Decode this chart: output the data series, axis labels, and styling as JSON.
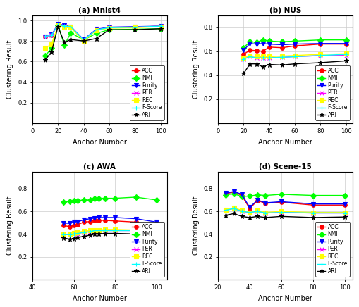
{
  "subplot_a": {
    "title": "(a) Mnist4",
    "xlabel": "Anchor Number",
    "ylabel": "Clustering Result",
    "xlim": [
      0,
      105
    ],
    "ylim": [
      0,
      1.05
    ],
    "xticks": [
      0,
      20,
      40,
      60,
      80,
      100
    ],
    "yticks": [
      0.2,
      0.4,
      0.6,
      0.8,
      1.0
    ],
    "series": {
      "ACC": {
        "x": [
          10,
          15,
          20,
          25,
          30,
          40,
          50,
          60,
          80,
          100
        ],
        "y": [
          0.845,
          0.855,
          0.96,
          0.945,
          0.94,
          0.81,
          0.91,
          0.93,
          0.935,
          0.945
        ],
        "color": "#FF0000",
        "marker": "o"
      },
      "NMI": {
        "x": [
          10,
          15,
          20,
          25,
          30,
          40,
          50,
          60,
          80,
          100
        ],
        "y": [
          0.655,
          0.73,
          0.955,
          0.76,
          0.88,
          0.81,
          0.875,
          0.91,
          0.915,
          0.92
        ],
        "color": "#00FF00",
        "marker": "D"
      },
      "Purity": {
        "x": [
          10,
          15,
          20,
          25,
          30,
          40,
          50,
          60,
          80,
          100
        ],
        "y": [
          0.845,
          0.86,
          0.965,
          0.955,
          0.94,
          0.815,
          0.915,
          0.935,
          0.94,
          0.945
        ],
        "color": "#0000FF",
        "marker": "v"
      },
      "PER": {
        "x": [
          10,
          15,
          20,
          25,
          30,
          40,
          50,
          60,
          80,
          100
        ],
        "y": [
          0.845,
          0.855,
          0.96,
          0.945,
          0.94,
          0.81,
          0.91,
          0.93,
          0.935,
          0.945
        ],
        "color": "#FF00FF",
        "marker": "x"
      },
      "REC": {
        "x": [
          10,
          15,
          20,
          25,
          30,
          40,
          50,
          60,
          80,
          100
        ],
        "y": [
          0.73,
          0.77,
          0.95,
          0.93,
          0.93,
          0.8,
          0.905,
          0.925,
          0.93,
          0.94
        ],
        "color": "#FFFF00",
        "marker": "s"
      },
      "F-Score": {
        "x": [
          10,
          15,
          20,
          25,
          30,
          40,
          50,
          60,
          80,
          100
        ],
        "y": [
          0.845,
          0.855,
          0.96,
          0.945,
          0.94,
          0.81,
          0.91,
          0.93,
          0.935,
          0.945
        ],
        "color": "#00FFFF",
        "marker": "+"
      },
      "ARI": {
        "x": [
          10,
          15,
          20,
          25,
          30,
          40,
          50,
          60,
          80,
          100
        ],
        "y": [
          0.615,
          0.695,
          0.94,
          0.785,
          0.815,
          0.8,
          0.825,
          0.91,
          0.91,
          0.92
        ],
        "color": "#000000",
        "marker": "*"
      }
    }
  },
  "subplot_b": {
    "title": "(b) NUS",
    "xlabel": "Anchor Number",
    "ylabel": "Clustering Result",
    "xlim": [
      0,
      105
    ],
    "ylim": [
      0,
      0.9
    ],
    "xticks": [
      0,
      20,
      40,
      60,
      80,
      100
    ],
    "yticks": [
      0.2,
      0.4,
      0.6,
      0.8
    ],
    "series": {
      "ACC": {
        "x": [
          20,
          25,
          30,
          35,
          40,
          50,
          60,
          80,
          100
        ],
        "y": [
          0.575,
          0.61,
          0.605,
          0.6,
          0.635,
          0.63,
          0.645,
          0.66,
          0.66
        ],
        "color": "#FF0000",
        "marker": "o"
      },
      "NMI": {
        "x": [
          20,
          25,
          30,
          35,
          40,
          50,
          60,
          80,
          100
        ],
        "y": [
          0.63,
          0.68,
          0.675,
          0.695,
          0.685,
          0.68,
          0.685,
          0.695,
          0.695
        ],
        "color": "#00FF00",
        "marker": "D"
      },
      "Purity": {
        "x": [
          20,
          25,
          30,
          35,
          40,
          50,
          60,
          80,
          100
        ],
        "y": [
          0.61,
          0.665,
          0.66,
          0.665,
          0.66,
          0.655,
          0.66,
          0.665,
          0.665
        ],
        "color": "#0000FF",
        "marker": "v"
      },
      "PER": {
        "x": [
          20,
          25,
          30,
          35,
          40,
          50,
          60,
          80,
          100
        ],
        "y": [
          0.535,
          0.555,
          0.545,
          0.545,
          0.545,
          0.55,
          0.555,
          0.565,
          0.565
        ],
        "color": "#FF00FF",
        "marker": "x"
      },
      "REC": {
        "x": [
          20,
          25,
          30,
          35,
          40,
          50,
          60,
          80,
          100
        ],
        "y": [
          0.545,
          0.565,
          0.555,
          0.555,
          0.555,
          0.56,
          0.565,
          0.575,
          0.58
        ],
        "color": "#FFFF00",
        "marker": "s"
      },
      "F-Score": {
        "x": [
          20,
          25,
          30,
          35,
          40,
          50,
          60,
          80,
          100
        ],
        "y": [
          0.535,
          0.555,
          0.545,
          0.545,
          0.545,
          0.55,
          0.555,
          0.565,
          0.575
        ],
        "color": "#00FFFF",
        "marker": "+"
      },
      "ARI": {
        "x": [
          20,
          25,
          30,
          35,
          40,
          50,
          60,
          80,
          100
        ],
        "y": [
          0.415,
          0.495,
          0.495,
          0.47,
          0.49,
          0.485,
          0.495,
          0.505,
          0.52
        ],
        "color": "#000000",
        "marker": "*"
      }
    }
  },
  "subplot_c": {
    "title": "(c) AWA",
    "xlabel": "Anchor Number",
    "ylabel": "Clustering Result",
    "xlim": [
      40,
      105
    ],
    "ylim": [
      0,
      0.95
    ],
    "xticks": [
      40,
      60,
      80,
      100
    ],
    "yticks": [
      0.2,
      0.4,
      0.6,
      0.8
    ],
    "series": {
      "ACC": {
        "x": [
          55,
          58,
          60,
          62,
          65,
          68,
          70,
          72,
          75,
          80,
          90,
          100
        ],
        "y": [
          0.475,
          0.465,
          0.475,
          0.485,
          0.505,
          0.51,
          0.52,
          0.52,
          0.52,
          0.515,
          0.505,
          0.47
        ],
        "color": "#FF0000",
        "marker": "o"
      },
      "NMI": {
        "x": [
          55,
          58,
          60,
          62,
          65,
          68,
          70,
          72,
          75,
          80,
          90,
          100
        ],
        "y": [
          0.68,
          0.69,
          0.695,
          0.695,
          0.7,
          0.7,
          0.71,
          0.715,
          0.715,
          0.715,
          0.725,
          0.7
        ],
        "color": "#00FF00",
        "marker": "D"
      },
      "Purity": {
        "x": [
          55,
          58,
          60,
          62,
          65,
          68,
          70,
          72,
          75,
          80,
          90,
          100
        ],
        "y": [
          0.495,
          0.495,
          0.505,
          0.51,
          0.525,
          0.535,
          0.54,
          0.545,
          0.545,
          0.545,
          0.535,
          0.505
        ],
        "color": "#0000FF",
        "marker": "v"
      },
      "PER": {
        "x": [
          55,
          58,
          60,
          62,
          65,
          68,
          70,
          72,
          75,
          80,
          90,
          100
        ],
        "y": [
          0.395,
          0.395,
          0.4,
          0.405,
          0.415,
          0.42,
          0.43,
          0.43,
          0.43,
          0.43,
          0.43,
          0.405
        ],
        "color": "#FF00FF",
        "marker": "x"
      },
      "REC": {
        "x": [
          55,
          58,
          60,
          62,
          65,
          68,
          70,
          72,
          75,
          80,
          90,
          100
        ],
        "y": [
          0.395,
          0.4,
          0.41,
          0.415,
          0.425,
          0.43,
          0.435,
          0.435,
          0.44,
          0.44,
          0.435,
          0.415
        ],
        "color": "#FFFF00",
        "marker": "s"
      },
      "F-Score": {
        "x": [
          55,
          58,
          60,
          62,
          65,
          68,
          70,
          72,
          75,
          80,
          90,
          100
        ],
        "y": [
          0.395,
          0.395,
          0.4,
          0.405,
          0.415,
          0.42,
          0.43,
          0.43,
          0.43,
          0.43,
          0.43,
          0.405
        ],
        "color": "#00FFFF",
        "marker": "+"
      },
      "ARI": {
        "x": [
          55,
          58,
          60,
          62,
          65,
          68,
          70,
          72,
          75,
          80,
          90,
          100
        ],
        "y": [
          0.365,
          0.355,
          0.36,
          0.37,
          0.38,
          0.39,
          0.4,
          0.4,
          0.405,
          0.405,
          0.4,
          0.375
        ],
        "color": "#000000",
        "marker": "*"
      }
    }
  },
  "subplot_d": {
    "title": "(d) Scene-15",
    "xlabel": "Anchor Number",
    "ylabel": "Clustering Result",
    "xlim": [
      20,
      105
    ],
    "ylim": [
      0,
      0.95
    ],
    "xticks": [
      20,
      40,
      60,
      80,
      100
    ],
    "yticks": [
      0.2,
      0.4,
      0.6,
      0.8
    ],
    "series": {
      "ACC": {
        "x": [
          25,
          30,
          35,
          40,
          45,
          50,
          60,
          80,
          100
        ],
        "y": [
          0.755,
          0.77,
          0.74,
          0.625,
          0.695,
          0.67,
          0.68,
          0.655,
          0.655
        ],
        "color": "#FF0000",
        "marker": "o"
      },
      "NMI": {
        "x": [
          25,
          30,
          35,
          40,
          45,
          50,
          60,
          80,
          100
        ],
        "y": [
          0.745,
          0.755,
          0.73,
          0.735,
          0.745,
          0.74,
          0.75,
          0.74,
          0.74
        ],
        "color": "#00FF00",
        "marker": "D"
      },
      "Purity": {
        "x": [
          25,
          30,
          35,
          40,
          45,
          50,
          60,
          80,
          100
        ],
        "y": [
          0.76,
          0.775,
          0.75,
          0.635,
          0.7,
          0.675,
          0.685,
          0.665,
          0.665
        ],
        "color": "#0000FF",
        "marker": "v"
      },
      "PER": {
        "x": [
          25,
          30,
          35,
          40,
          45,
          50,
          60,
          80,
          100
        ],
        "y": [
          0.61,
          0.625,
          0.6,
          0.59,
          0.6,
          0.585,
          0.59,
          0.585,
          0.585
        ],
        "color": "#FF00FF",
        "marker": "x"
      },
      "REC": {
        "x": [
          25,
          30,
          35,
          40,
          45,
          50,
          60,
          80,
          100
        ],
        "y": [
          0.61,
          0.63,
          0.61,
          0.59,
          0.605,
          0.59,
          0.6,
          0.59,
          0.59
        ],
        "color": "#FFFF00",
        "marker": "s"
      },
      "F-Score": {
        "x": [
          25,
          30,
          35,
          40,
          45,
          50,
          60,
          80,
          100
        ],
        "y": [
          0.61,
          0.625,
          0.6,
          0.59,
          0.6,
          0.585,
          0.59,
          0.585,
          0.585
        ],
        "color": "#00FFFF",
        "marker": "+"
      },
      "ARI": {
        "x": [
          25,
          30,
          35,
          40,
          45,
          50,
          60,
          80,
          100
        ],
        "y": [
          0.565,
          0.58,
          0.555,
          0.545,
          0.555,
          0.545,
          0.555,
          0.545,
          0.55
        ],
        "color": "#000000",
        "marker": "*"
      }
    }
  },
  "legend_labels": [
    "ACC",
    "NMI",
    "Purity",
    "PER",
    "REC",
    "F-Score",
    "ARI"
  ],
  "legend_colors": [
    "#FF0000",
    "#00FF00",
    "#0000FF",
    "#FF00FF",
    "#FFFF00",
    "#00FFFF",
    "#000000"
  ],
  "legend_markers": [
    "o",
    "D",
    "v",
    "x",
    "s",
    "+",
    "*"
  ]
}
